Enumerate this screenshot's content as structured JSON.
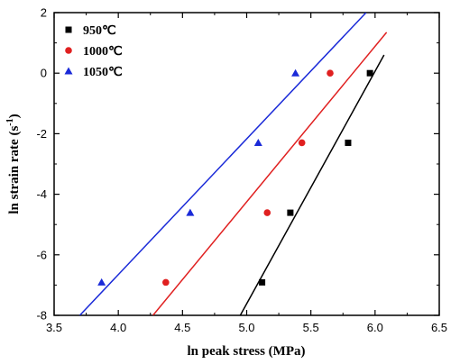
{
  "chart_data": {
    "type": "scatter",
    "xlabel": "ln peak stress (MPa)",
    "ylabel_main": "ln strain rate (s",
    "ylabel_sup": "-1",
    "ylabel_close": ")",
    "xlim": [
      3.5,
      6.5
    ],
    "ylim": [
      -8,
      2
    ],
    "xticks": [
      "3.5",
      "4.0",
      "4.5",
      "5.0",
      "5.5",
      "6.0",
      "6.5"
    ],
    "yticks": [
      "-8",
      "-6",
      "-4",
      "-2",
      "0",
      "2"
    ],
    "grid": false,
    "legend_position": "top-left",
    "series": [
      {
        "name": "950℃",
        "marker": "square",
        "color": "#000000",
        "points": [
          [
            5.12,
            -6.91
          ],
          [
            5.34,
            -4.61
          ],
          [
            5.79,
            -2.3
          ],
          [
            5.96,
            0.0
          ]
        ],
        "fit": [
          [
            4.95,
            -8.0
          ],
          [
            6.07,
            0.6
          ]
        ]
      },
      {
        "name": "1000℃",
        "marker": "circle",
        "color": "#e02020",
        "points": [
          [
            4.37,
            -6.91
          ],
          [
            5.16,
            -4.61
          ],
          [
            5.43,
            -2.3
          ],
          [
            5.65,
            0.0
          ]
        ],
        "fit": [
          [
            4.27,
            -8.0
          ],
          [
            6.09,
            1.35
          ]
        ]
      },
      {
        "name": "1050℃",
        "marker": "triangle",
        "color": "#1a2ad8",
        "points": [
          [
            3.87,
            -6.91
          ],
          [
            4.56,
            -4.61
          ],
          [
            5.09,
            -2.3
          ],
          [
            5.38,
            0.0
          ]
        ],
        "fit": [
          [
            3.7,
            -8.0
          ],
          [
            5.93,
            2.0
          ]
        ]
      }
    ]
  }
}
